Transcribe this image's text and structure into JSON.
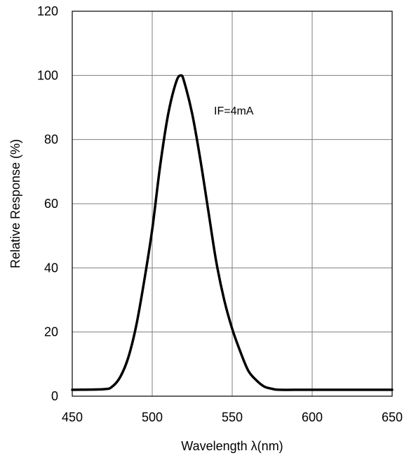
{
  "chart_data": {
    "type": "line",
    "xlabel": "Wavelength λ(nm)",
    "ylabel": "Relative Response (%)",
    "xlim": [
      450,
      650
    ],
    "ylim": [
      0,
      120
    ],
    "xticks": [
      450,
      500,
      550,
      600,
      650
    ],
    "yticks": [
      0,
      20,
      40,
      60,
      80,
      100,
      120
    ],
    "grid": true,
    "annotation": "IF=4mA",
    "series": [
      {
        "color": "#000000",
        "x": [
          450,
          470,
          475,
          480,
          485,
          490,
          495,
          500,
          505,
          510,
          515,
          518,
          520,
          525,
          530,
          535,
          540,
          545,
          550,
          555,
          560,
          565,
          570,
          575,
          580,
          600,
          650
        ],
        "y": [
          2,
          2.2,
          3,
          6,
          12,
          22,
          36,
          52,
          72,
          88,
          98,
          100,
          98,
          88,
          74,
          58,
          42,
          30,
          21,
          14,
          8,
          5,
          3,
          2.3,
          2,
          2,
          2
        ]
      }
    ]
  }
}
